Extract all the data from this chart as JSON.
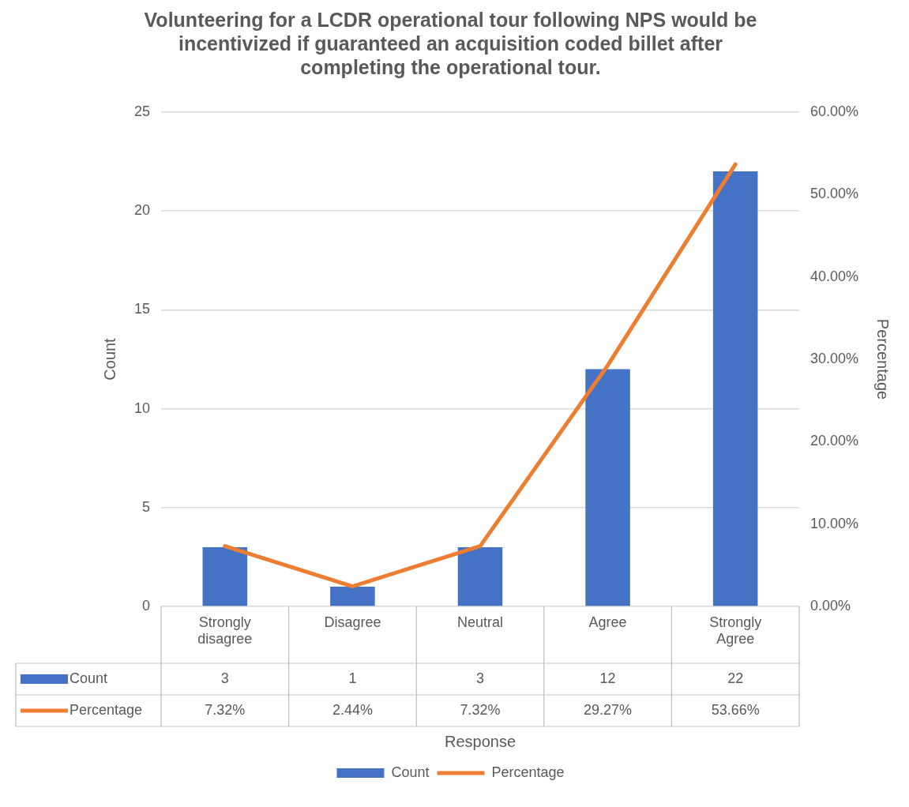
{
  "chart_data": {
    "type": "bar",
    "title": "Volunteering for a LCDR operational tour following NPS would be incentivized if guaranteed an acquisition coded billet after completing the operational tour.",
    "annotations": [
      "Response"
    ],
    "ylabel": "Count",
    "y2label": "Percentage",
    "categories": [
      "Strongly disagree",
      "Disagree",
      "Neutral",
      "Agree",
      "Strongly Agree"
    ],
    "series": [
      {
        "name": "Count",
        "color": "#4472c4",
        "values": [
          3,
          1,
          3,
          12,
          22
        ],
        "value_labels": [
          "3",
          "1",
          "3",
          "12",
          "22"
        ]
      },
      {
        "name": "Percentage",
        "type": "line",
        "axis": "y2",
        "color": "#ed7d31",
        "values": [
          7.32,
          2.44,
          7.32,
          29.27,
          53.66
        ],
        "value_labels": [
          "7.32%",
          "2.44%",
          "7.32%",
          "29.27%",
          "53.66%"
        ]
      }
    ],
    "ylim": [
      0,
      25
    ],
    "yticks": [
      0,
      5,
      10,
      15,
      20,
      25
    ],
    "y2lim": [
      0,
      60
    ],
    "y2ticks": [
      {
        "value": 0,
        "label": "0.00%"
      },
      {
        "value": 10,
        "label": "10.00%"
      },
      {
        "value": 20,
        "label": "20.00%"
      },
      {
        "value": 30,
        "label": "30.00%"
      },
      {
        "value": 40,
        "label": "40.00%"
      },
      {
        "value": 50,
        "label": "50.00%"
      },
      {
        "value": 60,
        "label": "60.00%"
      }
    ],
    "grid": "y",
    "legend": "bottom",
    "marker": "none",
    "line_style": "solid"
  }
}
